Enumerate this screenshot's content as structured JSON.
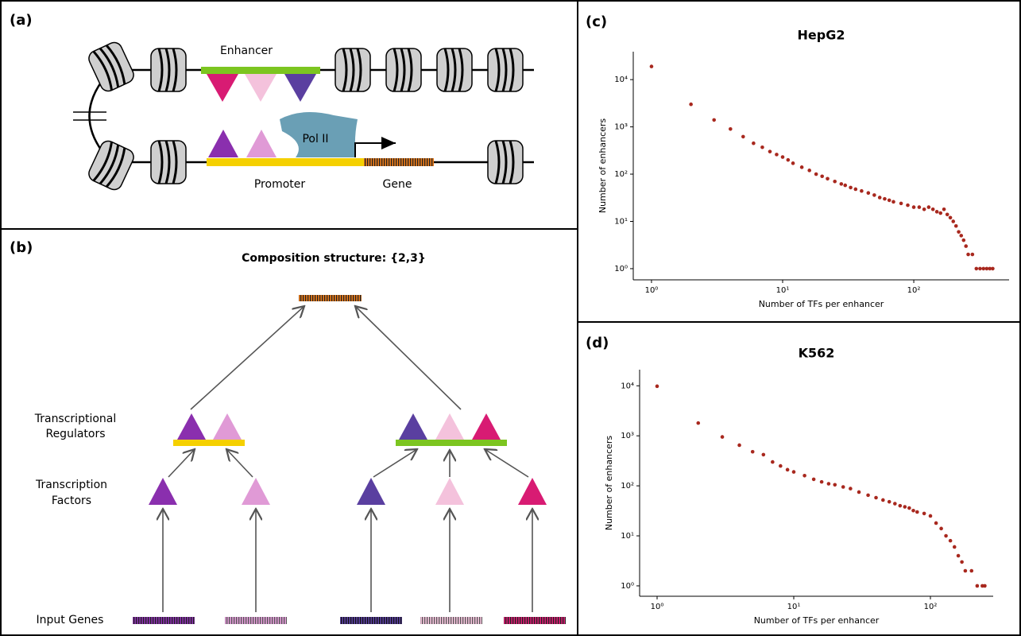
{
  "panel_labels": [
    "(a)",
    "(b)",
    "(c)",
    "(d)"
  ],
  "diagram_a": {
    "enhancer": "Enhancer",
    "pol": "Pol II",
    "promoter": "Promoter",
    "gene": "Gene"
  },
  "diagram_b": {
    "title": "Composition structure: {2,3}",
    "regulators": [
      "Transcriptional",
      "Regulators"
    ],
    "factors": [
      "Transcription",
      "Factors"
    ],
    "inputs": "Input Genes"
  },
  "chart_data": [
    {
      "type": "scatter",
      "title": "HepG2",
      "xlabel": "Number of TFs per enhancer",
      "ylabel": "Number of enhancers",
      "log_scale": true,
      "color": "#a8281e",
      "x": [
        1,
        2,
        3,
        4,
        5,
        6,
        7,
        8,
        9,
        10,
        11,
        12,
        14,
        16,
        18,
        20,
        22,
        25,
        28,
        30,
        33,
        36,
        40,
        45,
        50,
        55,
        60,
        65,
        70,
        80,
        90,
        100,
        110,
        120,
        130,
        140,
        150,
        160,
        170,
        180,
        190,
        200,
        210,
        220,
        230,
        240,
        250,
        260,
        280,
        300,
        320,
        340,
        360,
        380,
        400
      ],
      "values": [
        19000,
        3000,
        1400,
        900,
        620,
        450,
        370,
        300,
        260,
        230,
        200,
        170,
        140,
        120,
        100,
        90,
        80,
        70,
        62,
        58,
        52,
        48,
        44,
        40,
        36,
        32,
        30,
        28,
        26,
        24,
        22,
        20,
        20,
        18,
        20,
        18,
        16,
        15,
        18,
        14,
        12,
        10,
        8,
        6,
        5,
        4,
        3,
        2,
        2,
        1,
        1,
        1,
        1,
        1,
        1
      ],
      "xlim": [
        0.726,
        533
      ],
      "ylim": [
        0.58,
        39000
      ],
      "xticks": [
        {
          "value": 1,
          "label": "10⁰"
        },
        {
          "value": 10,
          "label": "10¹"
        },
        {
          "value": 100,
          "label": "10²"
        }
      ],
      "yticks": [
        {
          "value": 1,
          "label": "10⁰"
        },
        {
          "value": 10,
          "label": "10¹"
        },
        {
          "value": 100,
          "label": "10²"
        },
        {
          "value": 1000,
          "label": "10³"
        },
        {
          "value": 10000,
          "label": "10⁴"
        }
      ]
    },
    {
      "type": "scatter",
      "title": "K562",
      "xlabel": "Number of TFs per enhancer",
      "ylabel": "Number of enhancers",
      "log_scale": true,
      "color": "#a8281e",
      "x": [
        1,
        2,
        3,
        4,
        5,
        6,
        7,
        8,
        9,
        10,
        12,
        14,
        16,
        18,
        20,
        23,
        26,
        30,
        35,
        40,
        45,
        50,
        55,
        60,
        65,
        70,
        75,
        80,
        90,
        100,
        110,
        120,
        130,
        140,
        150,
        160,
        170,
        180,
        200,
        220,
        240,
        250
      ],
      "values": [
        9800,
        1800,
        950,
        650,
        480,
        420,
        300,
        250,
        210,
        190,
        160,
        135,
        120,
        110,
        105,
        95,
        88,
        75,
        65,
        58,
        52,
        48,
        44,
        40,
        38,
        36,
        32,
        30,
        28,
        25,
        18,
        14,
        10,
        8,
        6,
        4,
        3,
        2,
        2,
        1,
        1,
        1
      ],
      "xlim": [
        0.745,
        288
      ],
      "ylim": [
        0.62,
        21000
      ],
      "xticks": [
        {
          "value": 1,
          "label": "10⁰"
        },
        {
          "value": 10,
          "label": "10¹"
        },
        {
          "value": 100,
          "label": "10²"
        }
      ],
      "yticks": [
        {
          "value": 1,
          "label": "10⁰"
        },
        {
          "value": 10,
          "label": "10¹"
        },
        {
          "value": 100,
          "label": "10²"
        },
        {
          "value": 1000,
          "label": "10³"
        },
        {
          "value": 10000,
          "label": "10⁴"
        }
      ]
    }
  ]
}
